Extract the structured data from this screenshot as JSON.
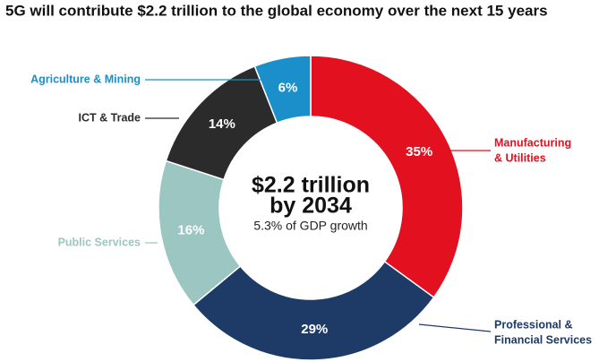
{
  "chart_data": {
    "type": "donut",
    "title": "5G will contribute $2.2 trillion to the global economy over the next 15 years",
    "center_lines": [
      "$2.2 trillion",
      "by 2034"
    ],
    "center_subtitle": "5.3% of GDP growth",
    "categories": [
      [
        "Manufacturing",
        "& Utilities"
      ],
      [
        "Professional &",
        "Financial Services"
      ],
      [
        "Public Services"
      ],
      [
        "ICT & Trade"
      ],
      [
        "Agriculture & Mining"
      ]
    ],
    "values": [
      35,
      29,
      16,
      14,
      6
    ],
    "value_labels": [
      "35%",
      "29%",
      "16%",
      "14%",
      "6%"
    ],
    "colors": [
      "#e3101f",
      "#1e3a66",
      "#9cc6c1",
      "#2b2b2b",
      "#1a8fc9"
    ]
  }
}
